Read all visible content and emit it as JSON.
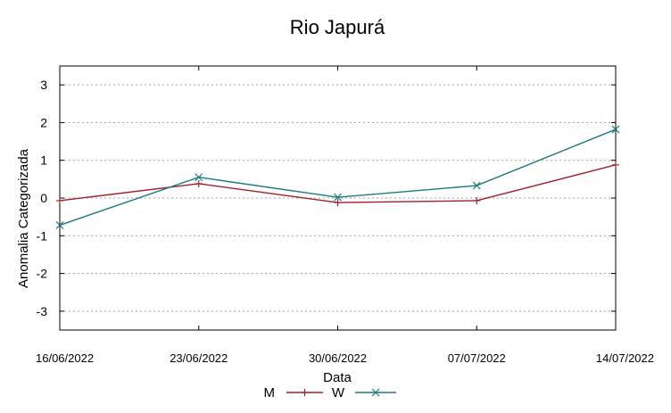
{
  "chart_data": {
    "type": "line",
    "title": "Rio Japurá",
    "xlabel": "Data",
    "ylabel": "Anomalia Categorizada",
    "categories": [
      "16/06/2022",
      "23/06/2022",
      "30/06/2022",
      "07/07/2022",
      "14/07/2022"
    ],
    "yticks": [
      "-3",
      "-2",
      "-1",
      "0",
      "1",
      "2",
      "3"
    ],
    "ylim": [
      -3.5,
      3.5
    ],
    "grid": true,
    "legend_position": "bottom",
    "series": [
      {
        "name": "M",
        "color": "#a0202a",
        "marker": "plus",
        "values": [
          -0.07,
          0.38,
          -0.12,
          -0.07,
          0.88
        ]
      },
      {
        "name": "W",
        "color": "#1a7a80",
        "marker": "cross",
        "values": [
          -0.72,
          0.55,
          0.02,
          0.33,
          1.82
        ]
      }
    ]
  }
}
